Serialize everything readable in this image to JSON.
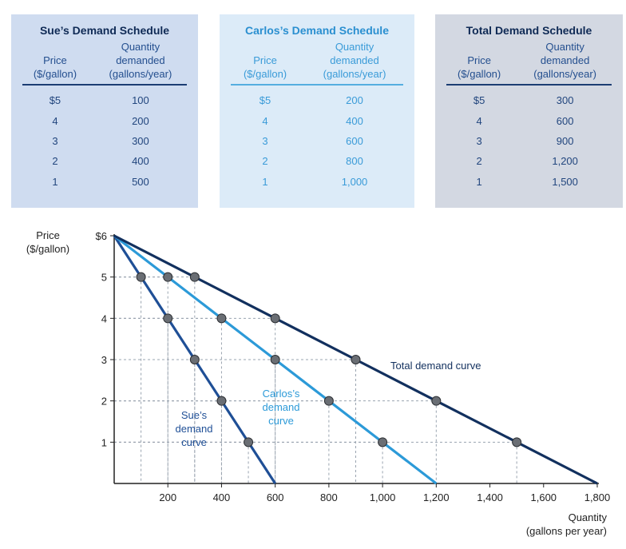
{
  "tables": [
    {
      "title": "Sue’s Demand Schedule",
      "price_header": [
        "Price",
        "($/gallon)"
      ],
      "quantity_header": [
        "Quantity",
        "demanded",
        "(gallons/year)"
      ],
      "rows": [
        [
          "$5",
          "100"
        ],
        [
          "4",
          "200"
        ],
        [
          "3",
          "300"
        ],
        [
          "2",
          "400"
        ],
        [
          "1",
          "500"
        ]
      ]
    },
    {
      "title": "Carlos’s Demand Schedule",
      "price_header": [
        "Price",
        "($/gallon)"
      ],
      "quantity_header": [
        "Quantity",
        "demanded",
        "(gallons/year)"
      ],
      "rows": [
        [
          "$5",
          "200"
        ],
        [
          "4",
          "400"
        ],
        [
          "3",
          "600"
        ],
        [
          "2",
          "800"
        ],
        [
          "1",
          "1,000"
        ]
      ]
    },
    {
      "title": "Total Demand Schedule",
      "price_header": [
        "Price",
        "($/gallon)"
      ],
      "quantity_header": [
        "Quantity",
        "demanded",
        "(gallons/year)"
      ],
      "rows": [
        [
          "$5",
          "300"
        ],
        [
          "4",
          "600"
        ],
        [
          "3",
          "900"
        ],
        [
          "2",
          "1,200"
        ],
        [
          "1",
          "1,500"
        ]
      ]
    }
  ],
  "chart_data": {
    "type": "line",
    "ylabel": [
      "Price",
      "($/gallon)"
    ],
    "xlabel": [
      "Quantity",
      "(gallons per year)"
    ],
    "xlim": [
      0,
      1800
    ],
    "ylim": [
      0,
      6
    ],
    "x_ticks": [
      200,
      400,
      600,
      800,
      1000,
      1200,
      1400,
      1600,
      1800
    ],
    "x_tick_labels": [
      "200",
      "400",
      "600",
      "800",
      "1,000",
      "1,200",
      "1,400",
      "1,600",
      "1,800"
    ],
    "y_ticks": [
      1,
      2,
      3,
      4,
      5,
      6
    ],
    "y_tick_labels": [
      "1",
      "2",
      "3",
      "4",
      "5",
      "$6"
    ],
    "grid": "dashed guides at plotted points",
    "series": [
      {
        "name": "Sue’s demand curve",
        "label_lines": [
          "Sue’s",
          "demand",
          "curve"
        ],
        "color": "#1f4f96",
        "points": [
          [
            0,
            6
          ],
          [
            100,
            5
          ],
          [
            200,
            4
          ],
          [
            300,
            3
          ],
          [
            400,
            2
          ],
          [
            500,
            1
          ],
          [
            600,
            0
          ]
        ]
      },
      {
        "name": "Carlos’s demand curve",
        "label_lines": [
          "Carlos’s",
          "demand",
          "curve"
        ],
        "color": "#2c9ad8",
        "points": [
          [
            0,
            6
          ],
          [
            200,
            5
          ],
          [
            400,
            4
          ],
          [
            600,
            3
          ],
          [
            800,
            2
          ],
          [
            1000,
            1
          ],
          [
            1200,
            0
          ]
        ]
      },
      {
        "name": "Total demand curve",
        "label_lines": [
          "Total demand curve"
        ],
        "color": "#12305e",
        "points": [
          [
            0,
            6
          ],
          [
            300,
            5
          ],
          [
            600,
            4
          ],
          [
            900,
            3
          ],
          [
            1200,
            2
          ],
          [
            1500,
            1
          ],
          [
            1800,
            0
          ]
        ]
      }
    ]
  }
}
